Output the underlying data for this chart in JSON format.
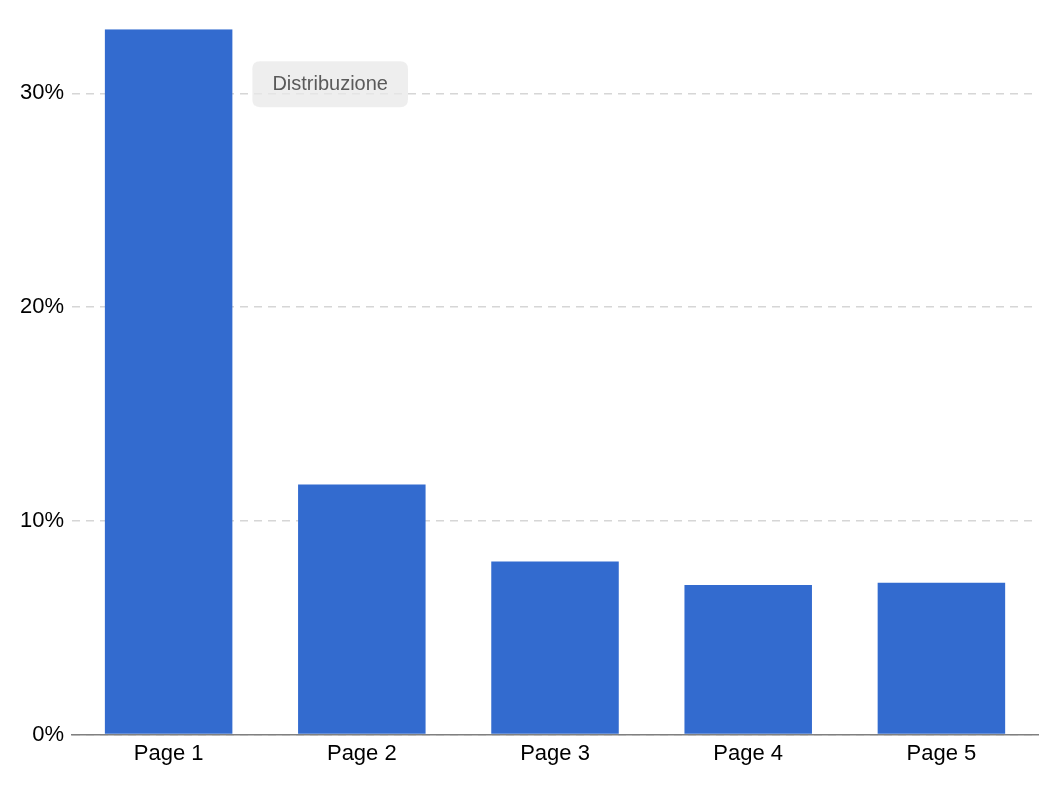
{
  "chart_data": {
    "type": "bar",
    "categories": [
      "Page 1",
      "Page 2",
      "Page 3",
      "Page 4",
      "Page 5"
    ],
    "values": [
      33,
      11.7,
      8.1,
      7.0,
      7.1
    ],
    "color": "#336bcf",
    "ylim": [
      0,
      33
    ],
    "yticks": [
      {
        "value": 0,
        "label": "0%"
      },
      {
        "value": 10,
        "label": "10%"
      },
      {
        "value": 20,
        "label": "20%"
      },
      {
        "value": 30,
        "label": "30%"
      }
    ],
    "grid": "y",
    "annotations": [
      "Distribuzione"
    ]
  }
}
